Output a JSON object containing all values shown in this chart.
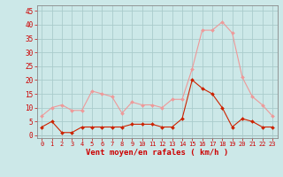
{
  "hours": [
    0,
    1,
    2,
    3,
    4,
    5,
    6,
    7,
    8,
    9,
    10,
    11,
    12,
    13,
    14,
    15,
    16,
    17,
    18,
    19,
    20,
    21,
    22,
    23
  ],
  "wind_avg": [
    3,
    5,
    1,
    1,
    3,
    3,
    3,
    3,
    3,
    4,
    4,
    4,
    3,
    3,
    6,
    20,
    17,
    15,
    10,
    3,
    6,
    5,
    3,
    3
  ],
  "wind_gust": [
    7,
    10,
    11,
    9,
    9,
    16,
    15,
    14,
    8,
    12,
    11,
    11,
    10,
    13,
    13,
    24,
    38,
    38,
    41,
    37,
    21,
    14,
    11,
    7
  ],
  "bg_color": "#cce8e8",
  "grid_color": "#aacccc",
  "avg_color": "#cc2200",
  "gust_color": "#ee9999",
  "xlabel": "Vent moyen/en rafales ( km/h )",
  "xlabel_color": "#cc0000",
  "tick_color": "#cc0000",
  "ylim": [
    -1,
    47
  ],
  "yticks": [
    0,
    5,
    10,
    15,
    20,
    25,
    30,
    35,
    40,
    45
  ],
  "xlim": [
    -0.5,
    23.5
  ]
}
